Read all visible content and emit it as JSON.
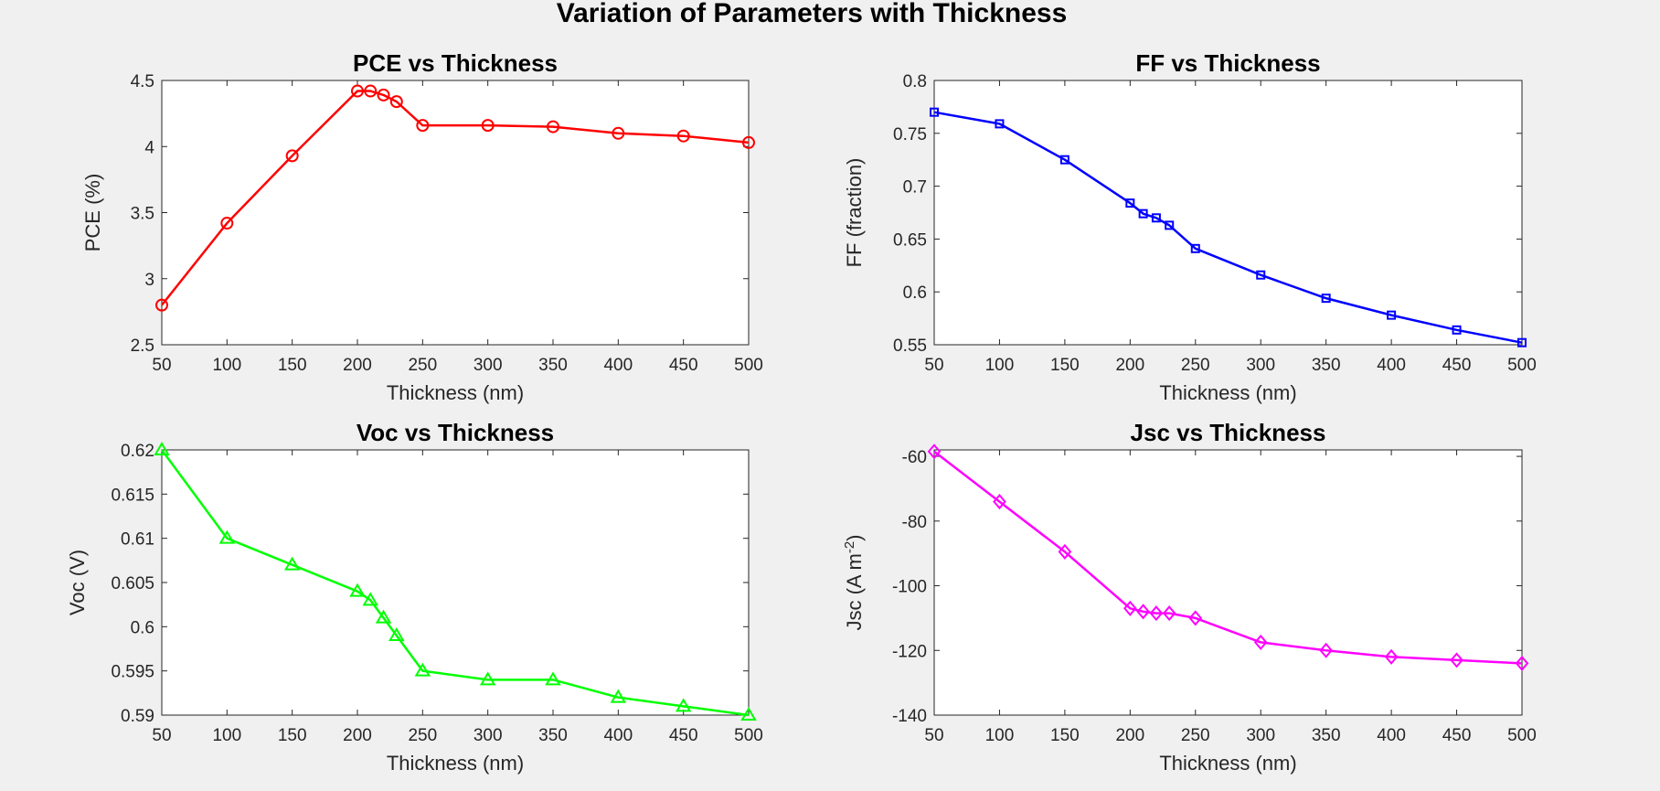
{
  "figure": {
    "title": "Variation of Parameters with Thickness",
    "background": "#f0f0f0"
  },
  "chart_data": [
    {
      "id": "pce",
      "type": "line",
      "title": "PCE vs Thickness",
      "xlabel": "Thickness (nm)",
      "ylabel": "PCE (%)",
      "xlim": [
        50,
        500
      ],
      "ylim": [
        2.5,
        4.5
      ],
      "xticks": [
        50,
        100,
        150,
        200,
        250,
        300,
        350,
        400,
        450,
        500
      ],
      "yticks": [
        2.5,
        3,
        3.5,
        4,
        4.5
      ],
      "ytick_labels": [
        "2.5",
        "3",
        "3.5",
        "4",
        "4.5"
      ],
      "grid": true,
      "series": [
        {
          "color": "#ff0000",
          "marker": "circle",
          "x": [
            50,
            100,
            150,
            200,
            210,
            220,
            230,
            250,
            300,
            350,
            400,
            450,
            500
          ],
          "y": [
            2.8,
            3.42,
            3.93,
            4.42,
            4.42,
            4.39,
            4.34,
            4.16,
            4.16,
            4.15,
            4.1,
            4.08,
            4.03
          ]
        }
      ]
    },
    {
      "id": "ff",
      "type": "line",
      "title": "FF vs Thickness",
      "xlabel": "Thickness (nm)",
      "ylabel": "FF (fraction)",
      "xlim": [
        50,
        500
      ],
      "ylim": [
        0.55,
        0.8
      ],
      "xticks": [
        50,
        100,
        150,
        200,
        250,
        300,
        350,
        400,
        450,
        500
      ],
      "yticks": [
        0.55,
        0.6,
        0.65,
        0.7,
        0.75,
        0.8
      ],
      "ytick_labels": [
        "0.55",
        "0.6",
        "0.65",
        "0.7",
        "0.75",
        "0.8"
      ],
      "grid": true,
      "series": [
        {
          "color": "#0000ff",
          "marker": "square",
          "x": [
            50,
            100,
            150,
            200,
            210,
            220,
            230,
            250,
            300,
            350,
            400,
            450,
            500
          ],
          "y": [
            0.77,
            0.759,
            0.725,
            0.684,
            0.674,
            0.67,
            0.663,
            0.641,
            0.616,
            0.594,
            0.578,
            0.564,
            0.552
          ]
        }
      ]
    },
    {
      "id": "voc",
      "type": "line",
      "title": "Voc vs Thickness",
      "xlabel": "Thickness (nm)",
      "ylabel": "Voc (V)",
      "xlim": [
        50,
        500
      ],
      "ylim": [
        0.59,
        0.62
      ],
      "xticks": [
        50,
        100,
        150,
        200,
        250,
        300,
        350,
        400,
        450,
        500
      ],
      "yticks": [
        0.59,
        0.595,
        0.6,
        0.605,
        0.61,
        0.615,
        0.62
      ],
      "ytick_labels": [
        "0.59",
        "0.595",
        "0.6",
        "0.605",
        "0.61",
        "0.615",
        "0.62"
      ],
      "grid": true,
      "series": [
        {
          "color": "#00ff00",
          "marker": "triangle",
          "x": [
            50,
            100,
            150,
            200,
            210,
            220,
            230,
            250,
            300,
            350,
            400,
            450,
            500
          ],
          "y": [
            0.62,
            0.61,
            0.607,
            0.604,
            0.603,
            0.601,
            0.599,
            0.595,
            0.594,
            0.594,
            0.592,
            0.591,
            0.59
          ]
        }
      ]
    },
    {
      "id": "jsc",
      "type": "line",
      "title": "Jsc vs Thickness",
      "xlabel": "Thickness (nm)",
      "ylabel_main": "Jsc (A m",
      "ylabel_sup": "-2",
      "ylabel_end": ")",
      "xlim": [
        50,
        500
      ],
      "ylim": [
        -140,
        -58
      ],
      "xticks": [
        50,
        100,
        150,
        200,
        250,
        300,
        350,
        400,
        450,
        500
      ],
      "yticks": [
        -140,
        -120,
        -100,
        -80,
        -60
      ],
      "ytick_labels": [
        "-140",
        "-120",
        "-100",
        "-80",
        "-60"
      ],
      "grid": true,
      "series": [
        {
          "color": "#ff00ff",
          "marker": "diamond",
          "x": [
            50,
            100,
            150,
            200,
            210,
            220,
            230,
            250,
            300,
            350,
            400,
            450,
            500
          ],
          "y": [
            -58.5,
            -74,
            -89.5,
            -107,
            -108,
            -108.5,
            -108.5,
            -110,
            -117.5,
            -120,
            -122,
            -123,
            -124
          ]
        }
      ]
    }
  ]
}
